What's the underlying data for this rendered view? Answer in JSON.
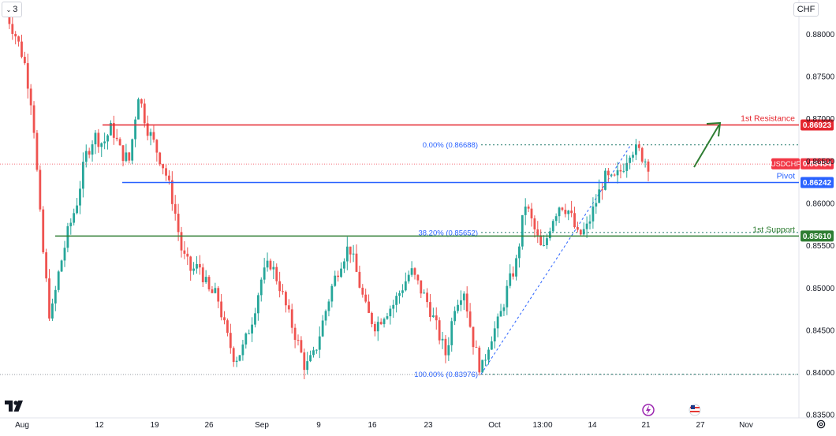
{
  "header": {
    "interval_label": "3",
    "currency_label": "CHF"
  },
  "chart_data": {
    "type": "candlestick",
    "symbol": "USDCHF",
    "ylim": [
      0.8346,
      0.884
    ],
    "price_ticks": [
      "0.88000",
      "0.87500",
      "0.87000",
      "0.86500",
      "0.86000",
      "0.85500",
      "0.85000",
      "0.84500",
      "0.84000",
      "0.83500"
    ],
    "time_ticks": [
      "Aug",
      "12",
      "19",
      "26",
      "Sep",
      "9",
      "16",
      "23",
      "Oct",
      "13:00",
      "14",
      "21",
      "27",
      "Nov"
    ],
    "levels": [
      {
        "name": "1st Resistance",
        "value": "0.86923",
        "color": "#e5262e"
      },
      {
        "name": "Pivot",
        "value": "0.86242",
        "color": "#2962ff"
      },
      {
        "name": "1st Support",
        "value": "0.85610",
        "color": "#2e7d32"
      }
    ],
    "current_price": {
      "symbol": "USDCHF",
      "value": "0.86464",
      "color": "#f23645"
    },
    "fib_levels": [
      {
        "label": "0.00% (0.86688)",
        "price": 0.86688
      },
      {
        "label": "38.20% (0.85652)",
        "price": 0.85652
      },
      {
        "label": "100.00% (0.83976)",
        "price": 0.83976
      }
    ],
    "colors": {
      "up": "#26a69a",
      "down": "#ef5350",
      "fib": "#3d8a7e",
      "trend": "#2962ff",
      "arrow": "#2e7d32"
    },
    "price_path": [
      0.8825,
      0.88,
      0.877,
      0.871,
      0.856,
      0.846,
      0.852,
      0.8565,
      0.86,
      0.8655,
      0.868,
      0.867,
      0.869,
      0.866,
      0.865,
      0.873,
      0.869,
      0.8665,
      0.864,
      0.86,
      0.854,
      0.852,
      0.8525,
      0.8495,
      0.849,
      0.8445,
      0.8415,
      0.843,
      0.8465,
      0.851,
      0.853,
      0.8505,
      0.847,
      0.844,
      0.8405,
      0.842,
      0.846,
      0.85,
      0.853,
      0.855,
      0.851,
      0.847,
      0.8455,
      0.847,
      0.848,
      0.85,
      0.852,
      0.85,
      0.848,
      0.845,
      0.842,
      0.848,
      0.85,
      0.844,
      0.84,
      0.844,
      0.846,
      0.85,
      0.853,
      0.86,
      0.857,
      0.854,
      0.858,
      0.86,
      0.859,
      0.856,
      0.857,
      0.86,
      0.863,
      0.8625,
      0.864,
      0.8665,
      0.866,
      0.8646
    ],
    "icons": [
      "lightning-event-icon",
      "us-flag-event-icon"
    ]
  }
}
